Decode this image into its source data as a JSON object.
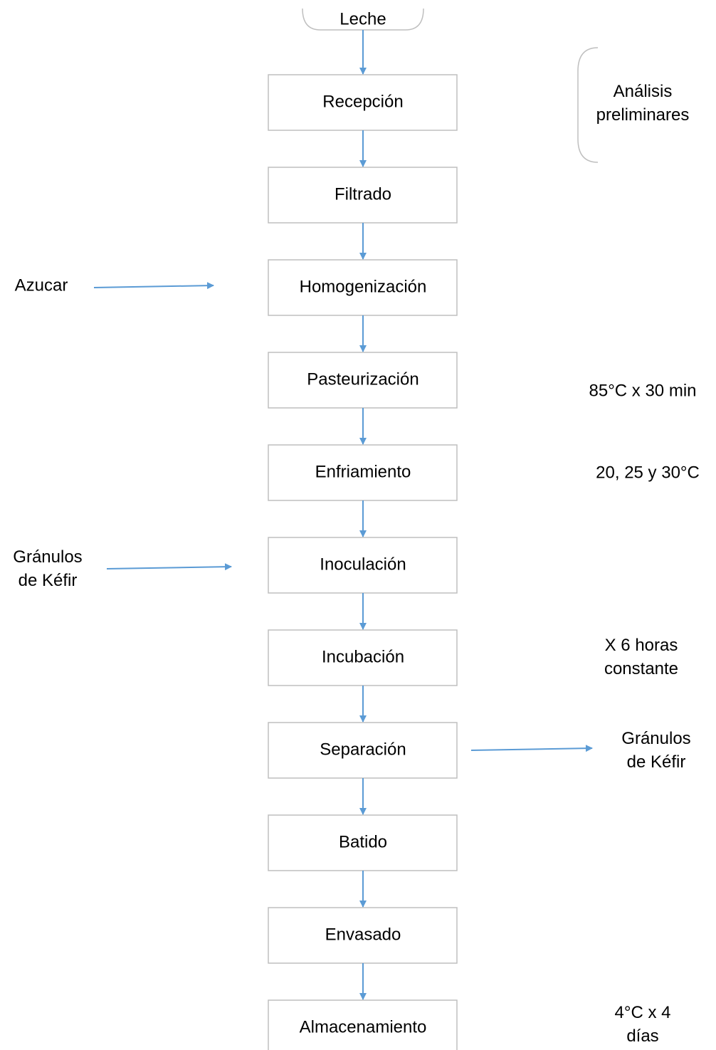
{
  "start": {
    "label": "Leche"
  },
  "steps": [
    {
      "label": "Recepción"
    },
    {
      "label": "Filtrado"
    },
    {
      "label": "Homogenización"
    },
    {
      "label": "Pasteurización"
    },
    {
      "label": "Enfriamiento"
    },
    {
      "label": "Inoculación"
    },
    {
      "label": "Incubación"
    },
    {
      "label": "Separación"
    },
    {
      "label": "Batido"
    },
    {
      "label": "Envasado"
    },
    {
      "label": "Almacenamiento"
    }
  ],
  "notes": [
    {
      "lines": [
        "Análisis",
        "preliminares"
      ]
    },
    {
      "lines": [
        "85°C x 30 min"
      ]
    },
    {
      "lines": [
        "20, 25 y 30°C"
      ]
    },
    {
      "lines": [
        "X 6 horas",
        "constante"
      ]
    },
    {
      "lines": [
        "4°C x 4",
        "días"
      ]
    }
  ],
  "inputs": [
    {
      "lines": [
        "Azucar"
      ]
    },
    {
      "lines": [
        "Gránulos",
        "de Kéfir"
      ]
    }
  ],
  "outputs": [
    {
      "lines": [
        "Gránulos",
        "de Kéfir"
      ]
    }
  ]
}
